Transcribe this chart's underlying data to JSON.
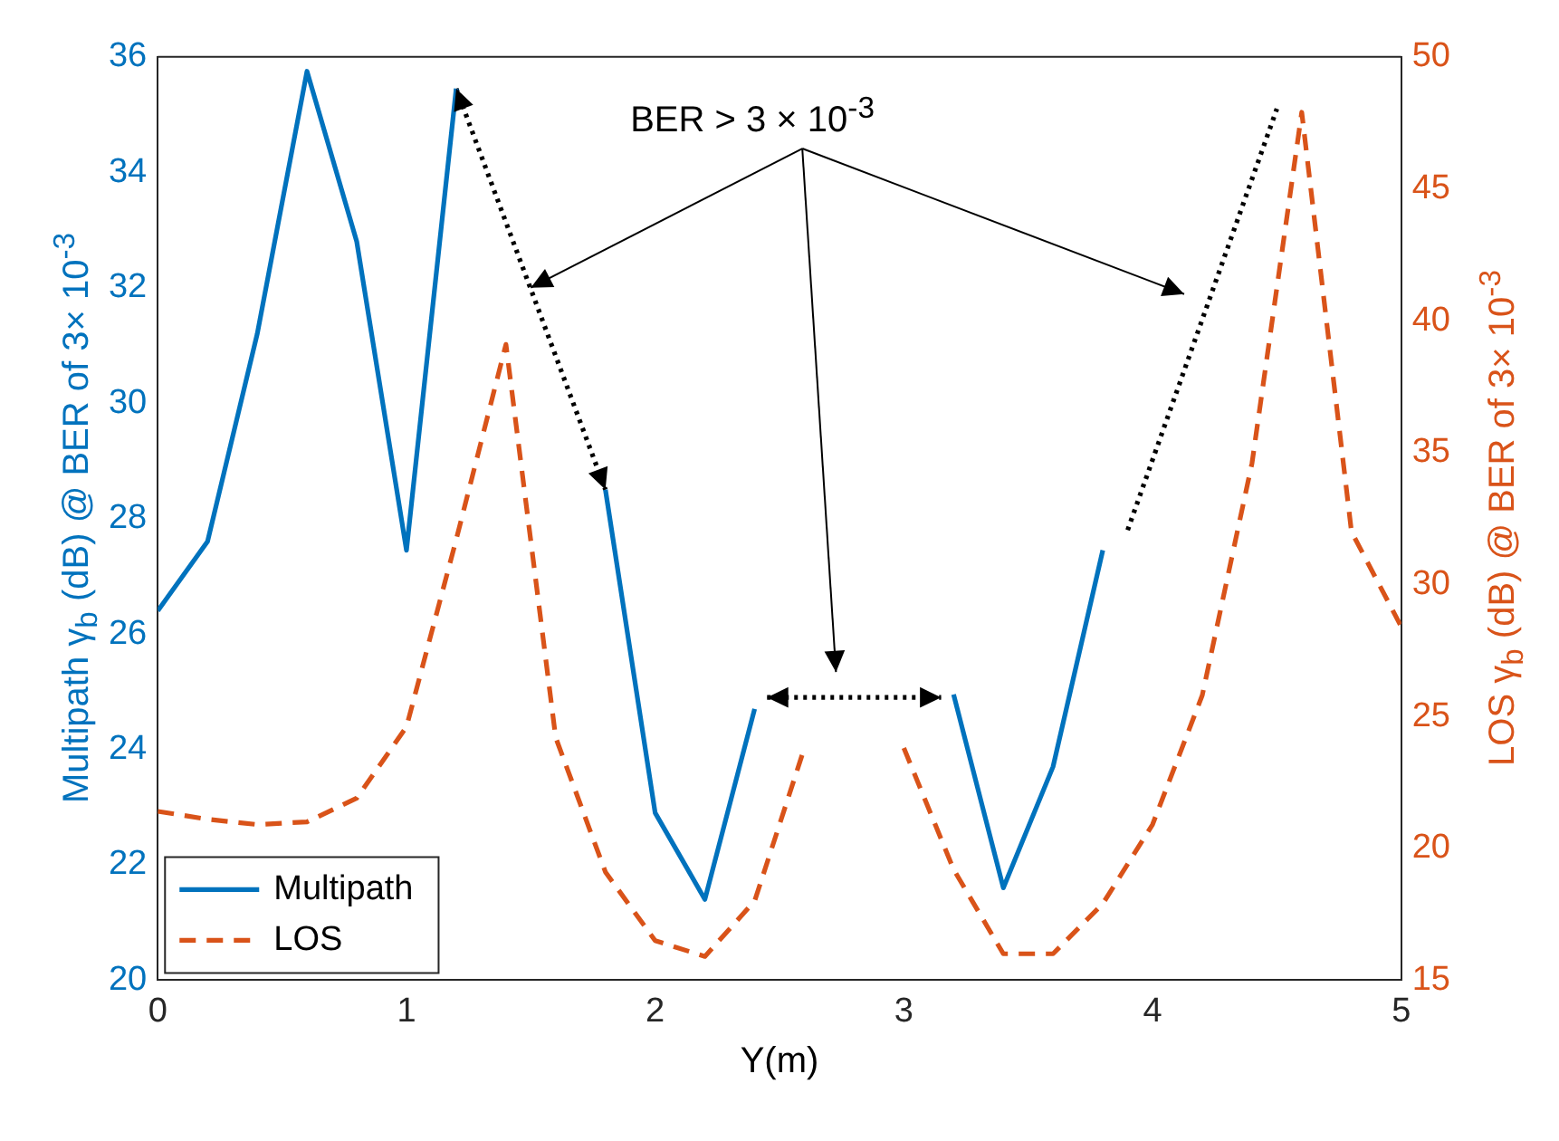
{
  "chart_data": {
    "type": "line",
    "xlabel": "Y(m)",
    "ylabel": "Multipath γ$_{b}$ (dB) @ BER of 3× 10$^{-3}$",
    "y2label": "LOS γ$_{b}$ (dB) @ BER of 3× 10$^{-3}$",
    "x": [
      0,
      0.2,
      0.4,
      0.6,
      0.8,
      1.0,
      1.2,
      1.4,
      1.6,
      1.8,
      2.0,
      2.2,
      2.4,
      2.6,
      2.8,
      3.0,
      3.2,
      3.4,
      3.6,
      3.8,
      4.0,
      4.2,
      4.4,
      4.6,
      4.8,
      5.0
    ],
    "series": [
      {
        "name": "Multipath",
        "color": "#0072bd",
        "line_style": "solid",
        "values": [
          26.4,
          27.6,
          31.2,
          35.75,
          32.8,
          27.45,
          35.45,
          null,
          null,
          28.5,
          22.9,
          21.4,
          24.7,
          null,
          null,
          null,
          24.95,
          21.6,
          23.7,
          27.45,
          null,
          null,
          null,
          null,
          null,
          null
        ]
      },
      {
        "name": "LOS",
        "color": "#d95319",
        "axis": "y2",
        "line_style": "dashed",
        "values": [
          21.4,
          21.1,
          20.9,
          21.0,
          21.9,
          24.6,
          31.7,
          39.1,
          24.2,
          19.1,
          16.5,
          15.9,
          18.0,
          23.8,
          null,
          23.8,
          19.2,
          16.0,
          16.0,
          17.9,
          20.9,
          25.8,
          34.6,
          47.9,
          32.0,
          28.4
        ]
      },
      {
        "color": "#000000",
        "line_style": "dotted",
        "x": [
          1.2,
          1.8,
          null,
          2.45,
          3.15,
          null,
          3.9,
          4.5
        ],
        "values": [
          35.45,
          28.5,
          null,
          24.9,
          24.9,
          null,
          27.8,
          35.1
        ]
      }
    ],
    "xlim": [
      0,
      5
    ],
    "xticks": [
      0,
      1,
      2,
      3,
      4,
      5
    ],
    "ylim": [
      20,
      36
    ],
    "yticks": [
      20,
      22,
      24,
      26,
      28,
      30,
      32,
      34,
      36
    ],
    "y2lim": [
      15,
      50
    ],
    "y2ticks": [
      15,
      20,
      25,
      30,
      35,
      40,
      45,
      50
    ],
    "annotations": [
      {
        "text": "BER > 3 × 10$^{-3}$",
        "x": 1.5,
        "y": 32.0
      }
    ],
    "marker": "none",
    "grid": false,
    "legend": "bottom left"
  }
}
